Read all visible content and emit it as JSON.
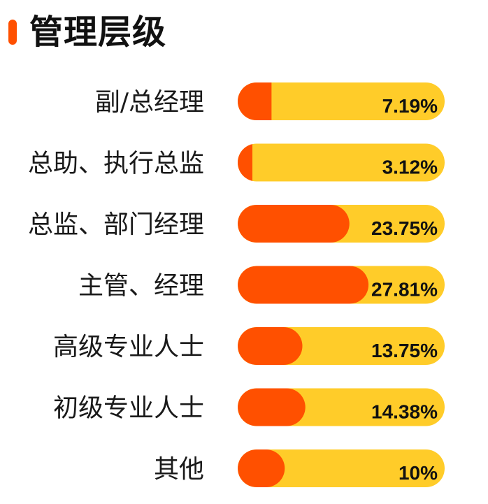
{
  "title": "管理层级",
  "colors": {
    "accent": "#ff5000",
    "bar_fill": "#ff5000",
    "bar_track": "#ffcc29",
    "text": "#111111"
  },
  "chart_data": {
    "type": "bar",
    "orientation": "horizontal",
    "title": "管理层级",
    "categories": [
      "副/总经理",
      "总助、执行总监",
      "总监、部门经理",
      "主管、经理",
      "高级专业人士",
      "初级专业人士",
      "其他"
    ],
    "values": [
      7.19,
      3.12,
      23.75,
      27.81,
      13.75,
      14.38,
      10
    ],
    "value_labels": [
      "7.19%",
      "3.12%",
      "23.75%",
      "27.81%",
      "13.75%",
      "14.38%",
      "10%"
    ],
    "unit": "%",
    "xlim": [
      0,
      44
    ],
    "grid": false,
    "legend": "none"
  }
}
